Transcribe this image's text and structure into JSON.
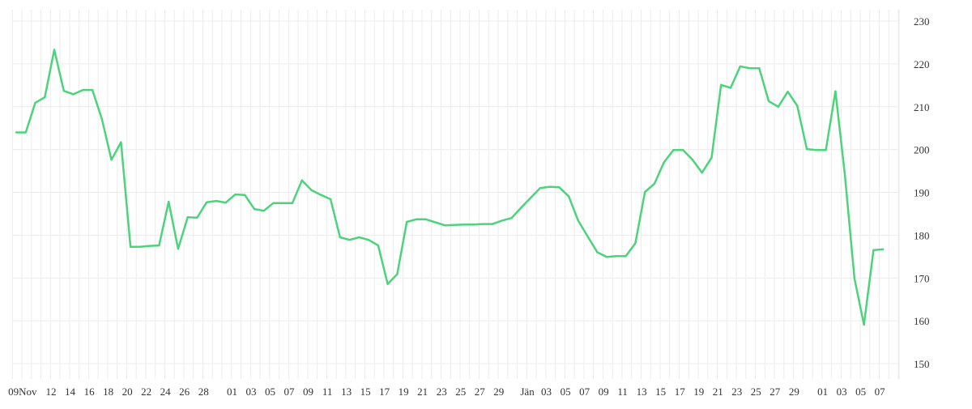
{
  "chart_data": {
    "type": "line",
    "title": "",
    "xlabel": "",
    "ylabel": "",
    "ylim": [
      150,
      230
    ],
    "y_ticks": [
      150,
      160,
      170,
      180,
      190,
      200,
      210,
      220,
      230
    ],
    "y_axis_position": "right",
    "grid": true,
    "line_color": "#4cd37b",
    "grid_color": "#ececec",
    "x": [
      "Nov 08",
      "Nov 09",
      "Nov 10",
      "Nov 11",
      "Nov 12",
      "Nov 13",
      "Nov 14",
      "Nov 15",
      "Nov 16",
      "Nov 17",
      "Nov 18",
      "Nov 19",
      "Nov 20",
      "Nov 21",
      "Nov 22",
      "Nov 23",
      "Nov 24",
      "Nov 25",
      "Nov 26",
      "Nov 27",
      "Nov 28",
      "Nov 29",
      "Nov 30",
      "Dec 01",
      "Dec 02",
      "Dec 03",
      "Dec 04",
      "Dec 05",
      "Dec 06",
      "Dec 07",
      "Dec 08",
      "Dec 09",
      "Dec 10",
      "Dec 11",
      "Dec 12",
      "Dec 13",
      "Dec 14",
      "Dec 15",
      "Dec 16",
      "Dec 17",
      "Dec 18",
      "Dec 19",
      "Dec 20",
      "Dec 21",
      "Dec 22",
      "Dec 23",
      "Dec 24",
      "Dec 25",
      "Dec 26",
      "Dec 27",
      "Dec 28",
      "Dec 29",
      "Dec 30",
      "Dec 31",
      "Jan 01",
      "Jan 02",
      "Jan 03",
      "Jan 04",
      "Jan 05",
      "Jan 06",
      "Jan 07",
      "Jan 08",
      "Jan 09",
      "Jan 10",
      "Jan 11",
      "Jan 12",
      "Jan 13",
      "Jan 14",
      "Jan 15",
      "Jan 16",
      "Jan 17",
      "Jan 18",
      "Jan 19",
      "Jan 20",
      "Jan 21",
      "Jan 22",
      "Jan 23",
      "Jan 24",
      "Jan 25",
      "Jan 26",
      "Jan 27",
      "Jan 28",
      "Jan 29",
      "Jan 30",
      "Jan 31",
      "Feb 01",
      "Feb 02",
      "Feb 03",
      "Feb 04",
      "Feb 05",
      "Feb 06",
      "Feb 07"
    ],
    "values": [
      204.0,
      204.0,
      210.9,
      212.2,
      223.3,
      213.7,
      212.9,
      213.9,
      213.9,
      207.1,
      197.6,
      201.7,
      177.3,
      177.3,
      177.5,
      177.6,
      187.8,
      176.8,
      184.2,
      184.1,
      187.7,
      188.0,
      187.6,
      189.5,
      189.4,
      186.1,
      185.7,
      187.5,
      187.5,
      187.5,
      192.8,
      190.5,
      189.4,
      188.4,
      179.5,
      178.9,
      179.5,
      178.9,
      177.6,
      168.6,
      170.9,
      183.1,
      183.7,
      183.7,
      183.0,
      182.3,
      182.4,
      182.5,
      182.5,
      182.6,
      182.6,
      183.4,
      184.0,
      186.4,
      188.7,
      191.0,
      191.3,
      191.2,
      189.1,
      183.4,
      179.7,
      176.0,
      174.9,
      175.1,
      175.1,
      178.1,
      190.1,
      192.0,
      197.0,
      199.9,
      199.9,
      197.6,
      194.6,
      198.1,
      215.1,
      214.4,
      219.4,
      219.0,
      219.0,
      211.3,
      210.0,
      213.5,
      210.2,
      200.1,
      199.9,
      199.9,
      213.6,
      194.0,
      169.9,
      159.1,
      176.5,
      176.7
    ],
    "x_ticks": [
      {
        "date": "Nov 09",
        "label": "09Nov"
      },
      {
        "date": "Nov 12",
        "label": "12"
      },
      {
        "date": "Nov 14",
        "label": "14"
      },
      {
        "date": "Nov 16",
        "label": "16"
      },
      {
        "date": "Nov 18",
        "label": "18"
      },
      {
        "date": "Nov 20",
        "label": "20"
      },
      {
        "date": "Nov 22",
        "label": "22"
      },
      {
        "date": "Nov 24",
        "label": "24"
      },
      {
        "date": "Nov 26",
        "label": "26"
      },
      {
        "date": "Nov 28",
        "label": "28"
      },
      {
        "date": "Dec 01",
        "label": "01"
      },
      {
        "date": "Dec 03",
        "label": "03"
      },
      {
        "date": "Dec 05",
        "label": "05"
      },
      {
        "date": "Dec 07",
        "label": "07"
      },
      {
        "date": "Dec 09",
        "label": "09"
      },
      {
        "date": "Dec 11",
        "label": "11"
      },
      {
        "date": "Dec 13",
        "label": "13"
      },
      {
        "date": "Dec 15",
        "label": "15"
      },
      {
        "date": "Dec 17",
        "label": "17"
      },
      {
        "date": "Dec 19",
        "label": "19"
      },
      {
        "date": "Dec 21",
        "label": "21"
      },
      {
        "date": "Dec 23",
        "label": "23"
      },
      {
        "date": "Dec 25",
        "label": "25"
      },
      {
        "date": "Dec 27",
        "label": "27"
      },
      {
        "date": "Dec 29",
        "label": "29"
      },
      {
        "date": "Jan 01",
        "label": "Jän"
      },
      {
        "date": "Jan 03",
        "label": "03"
      },
      {
        "date": "Jan 05",
        "label": "05"
      },
      {
        "date": "Jan 07",
        "label": "07"
      },
      {
        "date": "Jan 09",
        "label": "09"
      },
      {
        "date": "Jan 11",
        "label": "11"
      },
      {
        "date": "Jan 13",
        "label": "13"
      },
      {
        "date": "Jan 15",
        "label": "15"
      },
      {
        "date": "Jan 17",
        "label": "17"
      },
      {
        "date": "Jan 19",
        "label": "19"
      },
      {
        "date": "Jan 21",
        "label": "21"
      },
      {
        "date": "Jan 23",
        "label": "23"
      },
      {
        "date": "Jan 25",
        "label": "25"
      },
      {
        "date": "Jan 27",
        "label": "27"
      },
      {
        "date": "Jan 29",
        "label": "29"
      },
      {
        "date": "Feb 01",
        "label": "01"
      },
      {
        "date": "Feb 03",
        "label": "03"
      },
      {
        "date": "Feb 05",
        "label": "05"
      },
      {
        "date": "Feb 07",
        "label": "07"
      }
    ]
  }
}
